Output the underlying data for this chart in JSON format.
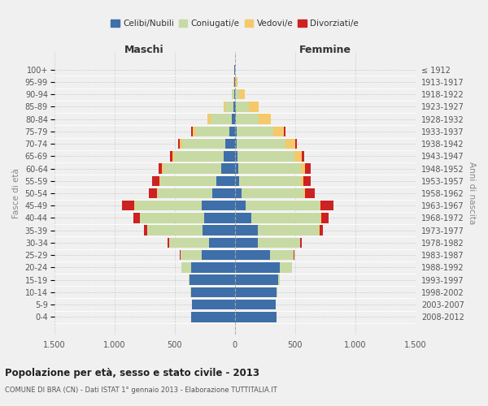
{
  "age_groups": [
    "0-4",
    "5-9",
    "10-14",
    "15-19",
    "20-24",
    "25-29",
    "30-34",
    "35-39",
    "40-44",
    "45-49",
    "50-54",
    "55-59",
    "60-64",
    "65-69",
    "70-74",
    "75-79",
    "80-84",
    "85-89",
    "90-94",
    "95-99",
    "100+"
  ],
  "birth_years": [
    "2008-2012",
    "2003-2007",
    "1998-2002",
    "1993-1997",
    "1988-1992",
    "1983-1987",
    "1978-1982",
    "1973-1977",
    "1968-1972",
    "1963-1967",
    "1958-1962",
    "1953-1957",
    "1948-1952",
    "1943-1947",
    "1938-1942",
    "1933-1937",
    "1928-1932",
    "1923-1927",
    "1918-1922",
    "1913-1917",
    "≤ 1912"
  ],
  "male_celibi": [
    360,
    355,
    365,
    375,
    365,
    275,
    215,
    270,
    255,
    275,
    185,
    155,
    115,
    95,
    75,
    45,
    25,
    10,
    7,
    3,
    2
  ],
  "male_coniugati": [
    0,
    0,
    2,
    8,
    75,
    175,
    330,
    455,
    530,
    555,
    455,
    465,
    480,
    410,
    360,
    285,
    175,
    65,
    14,
    3,
    0
  ],
  "male_vedovi": [
    0,
    0,
    0,
    0,
    1,
    1,
    1,
    2,
    3,
    4,
    6,
    8,
    10,
    15,
    20,
    20,
    25,
    15,
    5,
    2,
    0
  ],
  "male_divorziati": [
    0,
    0,
    0,
    0,
    2,
    5,
    10,
    30,
    55,
    105,
    65,
    58,
    28,
    18,
    18,
    13,
    0,
    0,
    0,
    0,
    0
  ],
  "female_celibi": [
    345,
    340,
    350,
    360,
    375,
    295,
    195,
    190,
    140,
    90,
    58,
    38,
    28,
    23,
    18,
    13,
    10,
    8,
    4,
    2,
    1
  ],
  "female_coniugati": [
    0,
    0,
    2,
    14,
    100,
    195,
    345,
    510,
    575,
    615,
    510,
    510,
    520,
    475,
    405,
    305,
    190,
    110,
    30,
    4,
    1
  ],
  "female_vedovi": [
    0,
    0,
    0,
    0,
    1,
    1,
    2,
    3,
    5,
    9,
    17,
    24,
    38,
    62,
    78,
    88,
    98,
    78,
    53,
    19,
    2
  ],
  "female_divorziati": [
    0,
    0,
    0,
    0,
    2,
    4,
    14,
    28,
    58,
    105,
    78,
    58,
    48,
    18,
    13,
    13,
    5,
    0,
    0,
    0,
    0
  ],
  "colors": {
    "celibi": "#3f6fa8",
    "coniugati": "#c8daa4",
    "vedovi": "#f5c96a",
    "divorziati": "#cc2222"
  },
  "title": "Popolazione per età, sesso e stato civile - 2013",
  "subtitle": "COMUNE DI BRA (CN) - Dati ISTAT 1° gennaio 2013 - Elaborazione TUTTITALIA.IT",
  "xlabel_left": "Maschi",
  "xlabel_right": "Femmine",
  "ylabel_left": "Fasce di età",
  "ylabel_right": "Anni di nascita",
  "xlim": 1500,
  "xticks": [
    -1500,
    -1000,
    -500,
    0,
    500,
    1000,
    1500
  ],
  "xticklabels": [
    "1.500",
    "1.000",
    "500",
    "0",
    "500",
    "1.000",
    "1.500"
  ],
  "legend_labels": [
    "Celibi/Nubili",
    "Coniugati/e",
    "Vedovi/e",
    "Divorziati/e"
  ],
  "background_color": "#f0f0f0"
}
